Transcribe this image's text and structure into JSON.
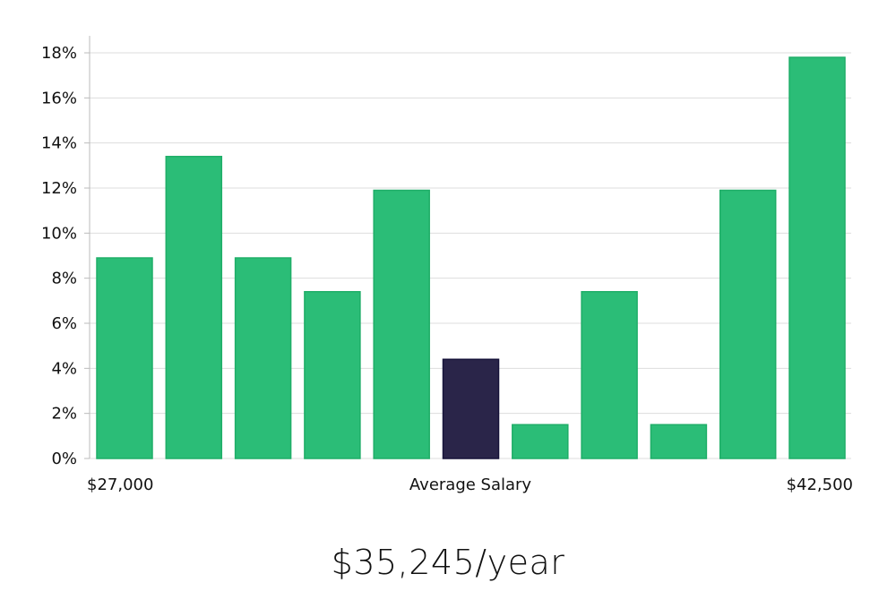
{
  "chart_data": {
    "type": "bar",
    "categories": [
      "1",
      "2",
      "3",
      "4",
      "5",
      "6",
      "7",
      "8",
      "9",
      "10",
      "11"
    ],
    "values": [
      8.9,
      13.4,
      8.9,
      7.4,
      11.9,
      4.4,
      1.5,
      7.4,
      1.5,
      11.9,
      17.8
    ],
    "highlight_index": 5,
    "ylim": [
      0,
      18
    ],
    "yticks": [
      0,
      2,
      4,
      6,
      8,
      10,
      12,
      14,
      16,
      18
    ],
    "ytick_format": "%",
    "grid": true,
    "x_labels": {
      "left": "$27,000",
      "center": "Average Salary",
      "right": "$42,500"
    },
    "colors": {
      "bar": "#2bbd77",
      "bar_stroke": "#1fae68",
      "highlight": "#2a2549",
      "highlight_stroke": "#17143a",
      "grid": "#dddddd",
      "axis": "#bbbbbb"
    }
  },
  "salary_label": "$35,245/year"
}
